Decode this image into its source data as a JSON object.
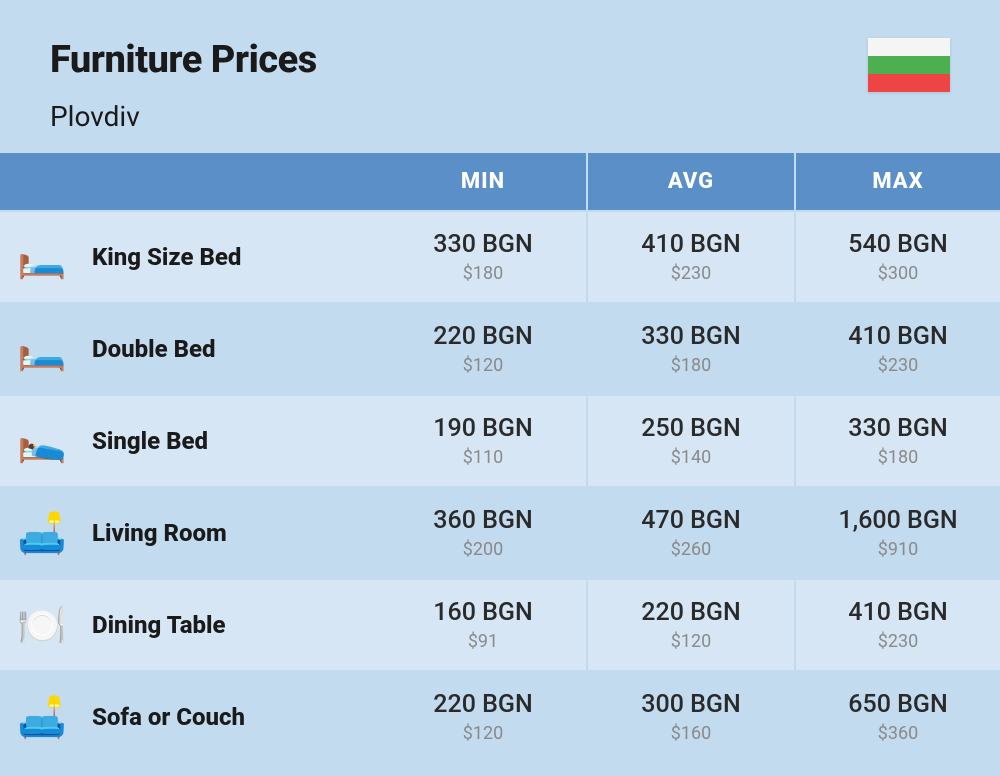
{
  "header": {
    "title": "Furniture Prices",
    "subtitle": "Plovdiv"
  },
  "flag": {
    "stripe1": "#f5f5f5",
    "stripe2": "#4caf50",
    "stripe3": "#ef4444"
  },
  "table": {
    "type": "table",
    "background_color": "#c3dbef",
    "header_bg": "#5a8fc7",
    "header_fg": "#ffffff",
    "row_odd_bg": "#d7e6f4",
    "row_even_bg": "#c3dbef",
    "title_fontsize": 38,
    "subtitle_fontsize": 28,
    "header_fontsize": 22,
    "name_fontsize": 24,
    "price_main_fontsize": 25,
    "price_sub_fontsize": 18,
    "price_sub_color": "#8a8a8a",
    "columns": [
      "",
      "",
      "MIN",
      "AVG",
      "MAX"
    ],
    "rows": [
      {
        "icon": "🛏️",
        "name": "King Size Bed",
        "min": {
          "local": "330 BGN",
          "usd": "$180"
        },
        "avg": {
          "local": "410 BGN",
          "usd": "$230"
        },
        "max": {
          "local": "540 BGN",
          "usd": "$300"
        }
      },
      {
        "icon": "🛏️",
        "name": "Double Bed",
        "min": {
          "local": "220 BGN",
          "usd": "$120"
        },
        "avg": {
          "local": "330 BGN",
          "usd": "$180"
        },
        "max": {
          "local": "410 BGN",
          "usd": "$230"
        }
      },
      {
        "icon": "🛌",
        "name": "Single Bed",
        "min": {
          "local": "190 BGN",
          "usd": "$110"
        },
        "avg": {
          "local": "250 BGN",
          "usd": "$140"
        },
        "max": {
          "local": "330 BGN",
          "usd": "$180"
        }
      },
      {
        "icon": "🛋️",
        "name": "Living Room",
        "min": {
          "local": "360 BGN",
          "usd": "$200"
        },
        "avg": {
          "local": "470 BGN",
          "usd": "$260"
        },
        "max": {
          "local": "1,600 BGN",
          "usd": "$910"
        }
      },
      {
        "icon": "🍽️",
        "name": "Dining Table",
        "min": {
          "local": "160 BGN",
          "usd": "$91"
        },
        "avg": {
          "local": "220 BGN",
          "usd": "$120"
        },
        "max": {
          "local": "410 BGN",
          "usd": "$230"
        }
      },
      {
        "icon": "🛋️",
        "name": "Sofa or Couch",
        "min": {
          "local": "220 BGN",
          "usd": "$120"
        },
        "avg": {
          "local": "300 BGN",
          "usd": "$160"
        },
        "max": {
          "local": "650 BGN",
          "usd": "$360"
        }
      }
    ]
  }
}
